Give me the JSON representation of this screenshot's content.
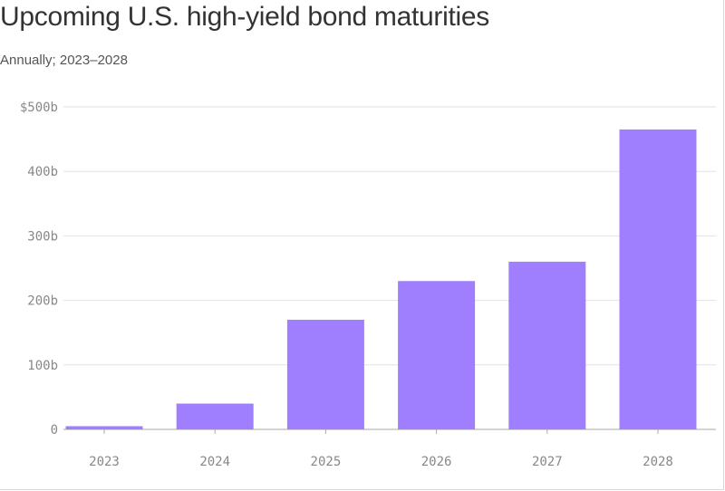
{
  "header": {
    "title": "Upcoming U.S. high-yield bond maturities",
    "subtitle": "Annually; 2023–2028"
  },
  "chart_data": {
    "type": "bar",
    "title": "Upcoming U.S. high-yield bond maturities",
    "subtitle": "Annually; 2023–2028",
    "categories": [
      "2023",
      "2024",
      "2025",
      "2026",
      "2027",
      "2028"
    ],
    "values": [
      5,
      40,
      170,
      230,
      260,
      465
    ],
    "unit": "billion USD",
    "ylim": [
      0,
      500
    ],
    "yticks": [
      {
        "value": 0,
        "label": "0"
      },
      {
        "value": 100,
        "label": "100b"
      },
      {
        "value": 200,
        "label": "200b"
      },
      {
        "value": 300,
        "label": "300b"
      },
      {
        "value": 400,
        "label": "400b"
      },
      {
        "value": 500,
        "label": "$500b"
      }
    ],
    "grid": true,
    "bar_color": "#a07fff",
    "grid_color": "#e2e2e2",
    "axis_color": "#aaaaaa"
  }
}
